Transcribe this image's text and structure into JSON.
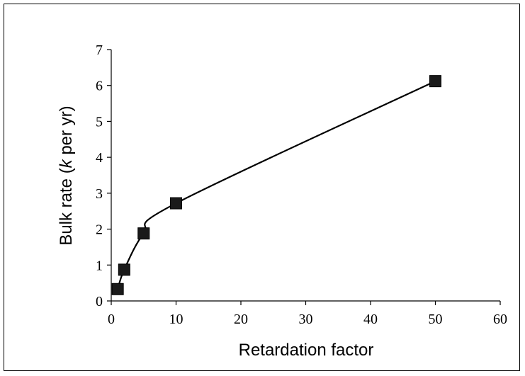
{
  "chart_data": {
    "type": "line",
    "title": "",
    "xlabel": "Retardation factor",
    "ylabel_prefix": "Bulk rate (",
    "ylabel_italic": "k",
    "ylabel_suffix": " per yr)",
    "xlim": [
      0,
      60
    ],
    "ylim": [
      0,
      7
    ],
    "x_ticks": [
      0,
      10,
      20,
      30,
      40,
      50,
      60
    ],
    "y_ticks": [
      0,
      1,
      2,
      3,
      4,
      5,
      6,
      7
    ],
    "grid": false,
    "line_style": "smoothed",
    "marker": "square",
    "series": [
      {
        "x": [
          1,
          2,
          5,
          10,
          50
        ],
        "y": [
          0.33,
          0.87,
          1.88,
          2.72,
          6.12
        ]
      }
    ],
    "colors": {
      "line": "#000000",
      "marker": "#1a1a1a"
    }
  }
}
